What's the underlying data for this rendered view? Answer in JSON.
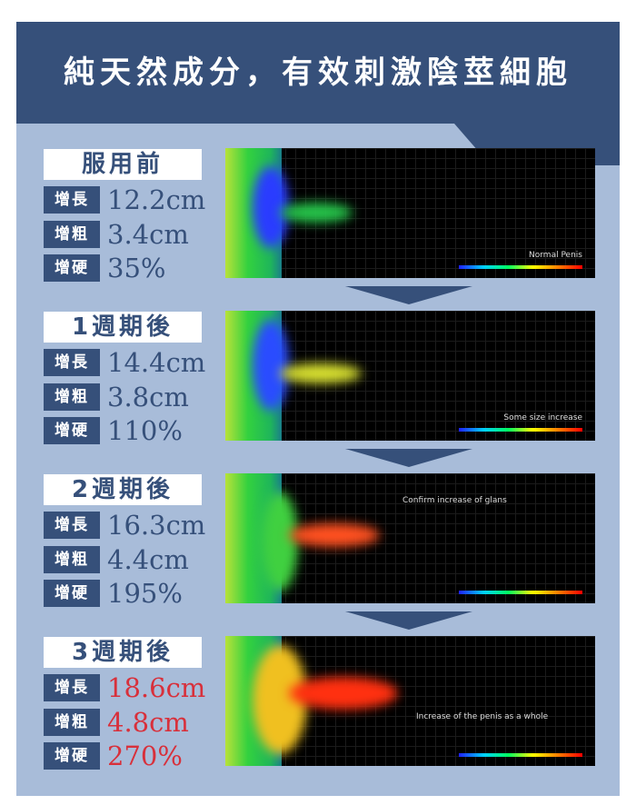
{
  "title": "純天然成分，有效刺激陰莖細胞",
  "stages": [
    {
      "label": "服用前",
      "length": "12.2cm",
      "girth": "3.4cm",
      "hardness": "35%",
      "caption": "Normal Penis"
    },
    {
      "label": "1週期後",
      "length": "14.4cm",
      "girth": "3.8cm",
      "hardness": "110%",
      "caption": "Some size increase"
    },
    {
      "label": "2週期後",
      "length": "16.3cm",
      "girth": "4.4cm",
      "hardness": "195%",
      "caption": "Confirm increase of glans"
    },
    {
      "label": "3週期後",
      "length": "18.6cm",
      "girth": "4.8cm",
      "hardness": "270%",
      "caption": "Increase of the penis as a whole"
    }
  ],
  "tags": {
    "length": "增長",
    "girth": "增粗",
    "hardness": "增硬"
  },
  "colors": {
    "navy": "#36507a",
    "background": "#a8bcd9",
    "highlight": "#d8303b"
  }
}
